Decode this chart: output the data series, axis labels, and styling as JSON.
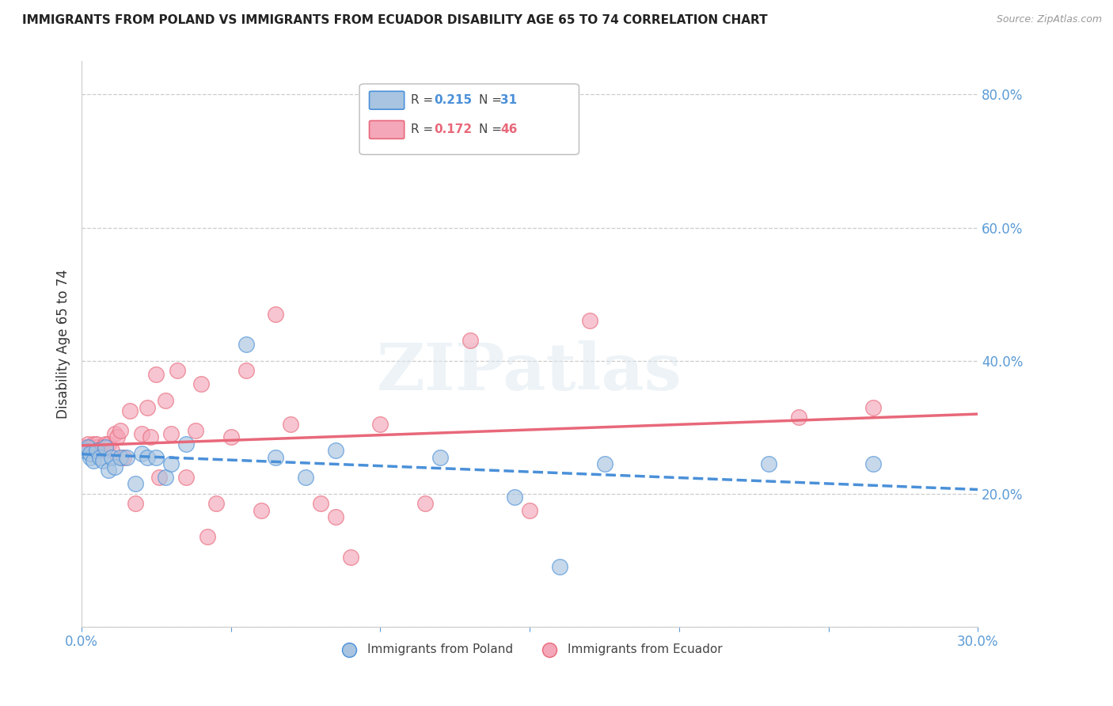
{
  "title": "IMMIGRANTS FROM POLAND VS IMMIGRANTS FROM ECUADOR DISABILITY AGE 65 TO 74 CORRELATION CHART",
  "source": "Source: ZipAtlas.com",
  "ylabel": "Disability Age 65 to 74",
  "xmin": 0.0,
  "xmax": 0.3,
  "ymin": 0.0,
  "ymax": 0.85,
  "xticks": [
    0.0,
    0.05,
    0.1,
    0.15,
    0.2,
    0.25,
    0.3
  ],
  "yticks": [
    0.0,
    0.2,
    0.4,
    0.6,
    0.8
  ],
  "color_poland": "#a8c4e0",
  "color_ecuador": "#f4a7b9",
  "color_poland_line": "#4a90d9",
  "color_ecuador_line": "#e8687a",
  "color_tick": "#5b9bd5",
  "poland_x": [
    0.001,
    0.002,
    0.003,
    0.003,
    0.004,
    0.005,
    0.006,
    0.007,
    0.008,
    0.009,
    0.01,
    0.011,
    0.013,
    0.015,
    0.018,
    0.02,
    0.022,
    0.025,
    0.028,
    0.03,
    0.035,
    0.055,
    0.065,
    0.075,
    0.085,
    0.12,
    0.145,
    0.16,
    0.175,
    0.23,
    0.265
  ],
  "poland_y": [
    0.265,
    0.27,
    0.255,
    0.26,
    0.25,
    0.265,
    0.255,
    0.25,
    0.27,
    0.235,
    0.255,
    0.24,
    0.255,
    0.255,
    0.215,
    0.26,
    0.255,
    0.255,
    0.225,
    0.245,
    0.275,
    0.425,
    0.255,
    0.225,
    0.265,
    0.255,
    0.195,
    0.09,
    0.245,
    0.245,
    0.245
  ],
  "ecuador_x": [
    0.001,
    0.002,
    0.003,
    0.004,
    0.005,
    0.005,
    0.006,
    0.007,
    0.008,
    0.008,
    0.009,
    0.01,
    0.011,
    0.012,
    0.013,
    0.014,
    0.016,
    0.018,
    0.02,
    0.022,
    0.023,
    0.025,
    0.026,
    0.028,
    0.03,
    0.032,
    0.035,
    0.038,
    0.04,
    0.042,
    0.045,
    0.05,
    0.055,
    0.06,
    0.065,
    0.07,
    0.08,
    0.085,
    0.09,
    0.1,
    0.115,
    0.13,
    0.15,
    0.17,
    0.24,
    0.265
  ],
  "ecuador_y": [
    0.27,
    0.275,
    0.27,
    0.275,
    0.27,
    0.275,
    0.265,
    0.27,
    0.27,
    0.275,
    0.275,
    0.265,
    0.29,
    0.285,
    0.295,
    0.255,
    0.325,
    0.185,
    0.29,
    0.33,
    0.285,
    0.38,
    0.225,
    0.34,
    0.29,
    0.385,
    0.225,
    0.295,
    0.365,
    0.135,
    0.185,
    0.285,
    0.385,
    0.175,
    0.47,
    0.305,
    0.185,
    0.165,
    0.105,
    0.305,
    0.185,
    0.43,
    0.175,
    0.46,
    0.315,
    0.33
  ],
  "watermark": "ZIPatlas"
}
